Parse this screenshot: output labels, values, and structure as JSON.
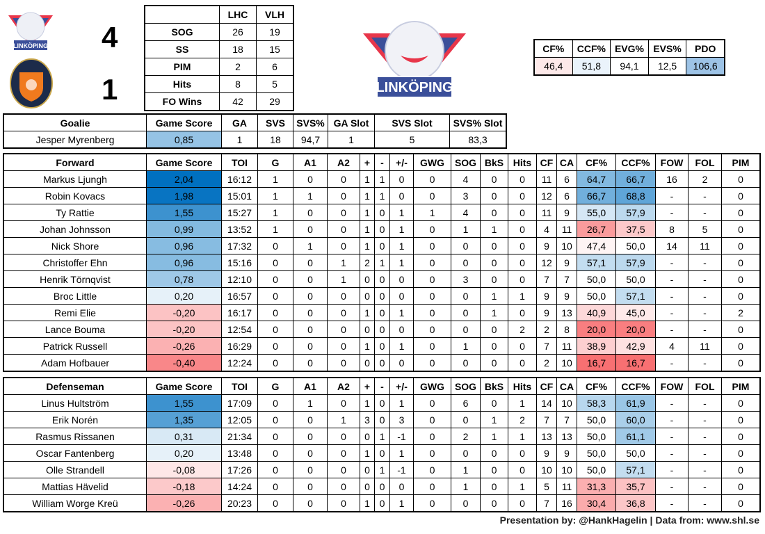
{
  "scoreboard": {
    "home_logo": "Linköping",
    "away_logo": "Växjö Lakers Hockey Stort Hjärta",
    "home_score": "4",
    "away_score": "1"
  },
  "team_stats": {
    "headers": [
      "",
      "LHC",
      "VLH"
    ],
    "rows": [
      [
        "SOG",
        "26",
        "19"
      ],
      [
        "SS",
        "18",
        "15"
      ],
      [
        "PIM",
        "2",
        "6"
      ],
      [
        "Hits",
        "8",
        "5"
      ],
      [
        "FO Wins",
        "42",
        "29"
      ]
    ]
  },
  "big_logo": "LINKÖPING",
  "advanced": {
    "headers": [
      "CF%",
      "CCF%",
      "EVG%",
      "EVS%",
      "PDO"
    ],
    "values": [
      "46,4",
      "51,8",
      "94,1",
      "12,5",
      "106,6"
    ],
    "colors": [
      "#fde9e9",
      "#eaf3fb",
      "#ffffff",
      "#ffffff",
      "#9dc3e6"
    ]
  },
  "color_scales": {
    "game_score": {
      "min": -0.5,
      "mid": 0,
      "max": 2.04,
      "min_color": "#F8696B",
      "mid_color": "#FFFFFF",
      "max_color": "#0070C0"
    },
    "corsi": {
      "min": 15,
      "mid": 50,
      "max": 80,
      "min_color": "#F8696B",
      "mid_color": "#FFFFFF",
      "max_color": "#0070C0"
    }
  },
  "goalie": {
    "headers": [
      "Goalie",
      "Game Score",
      "GA",
      "SVS",
      "SVS%",
      "GA Slot",
      "SVS Slot",
      "SVS% Slot"
    ],
    "rows": [
      [
        "Jesper Myrenberg",
        "0,85",
        "1",
        "18",
        "94,7",
        "1",
        "5",
        "83,3"
      ]
    ]
  },
  "forwards": {
    "headers": [
      "Forward",
      "Game Score",
      "TOI",
      "G",
      "A1",
      "A2",
      "+",
      "-",
      "+/-",
      "GWG",
      "SOG",
      "BkS",
      "Hits",
      "CF",
      "CA",
      "CF%",
      "CCF%",
      "FOW",
      "FOL",
      "PIM"
    ],
    "rows": [
      [
        "Markus Ljungh",
        "2,04",
        "16:12",
        "1",
        "0",
        "0",
        "1",
        "1",
        "0",
        "0",
        "4",
        "0",
        "0",
        "11",
        "6",
        "64,7",
        "66,7",
        "16",
        "2",
        "0"
      ],
      [
        "Robin Kovacs",
        "1,98",
        "15:01",
        "1",
        "1",
        "0",
        "1",
        "1",
        "0",
        "0",
        "3",
        "0",
        "0",
        "12",
        "6",
        "66,7",
        "68,8",
        "-",
        "-",
        "0"
      ],
      [
        "Ty Rattie",
        "1,55",
        "15:27",
        "1",
        "0",
        "0",
        "1",
        "0",
        "1",
        "1",
        "4",
        "0",
        "0",
        "11",
        "9",
        "55,0",
        "57,9",
        "-",
        "-",
        "0"
      ],
      [
        "Johan Johnsson",
        "0,99",
        "13:52",
        "1",
        "0",
        "0",
        "1",
        "0",
        "1",
        "0",
        "1",
        "1",
        "0",
        "4",
        "11",
        "26,7",
        "37,5",
        "8",
        "5",
        "0"
      ],
      [
        "Nick Shore",
        "0,96",
        "17:32",
        "0",
        "1",
        "0",
        "1",
        "0",
        "1",
        "0",
        "0",
        "0",
        "0",
        "9",
        "10",
        "47,4",
        "50,0",
        "14",
        "11",
        "0"
      ],
      [
        "Christoffer Ehn",
        "0,96",
        "15:16",
        "0",
        "0",
        "1",
        "2",
        "1",
        "1",
        "0",
        "0",
        "0",
        "0",
        "12",
        "9",
        "57,1",
        "57,9",
        "-",
        "-",
        "0"
      ],
      [
        "Henrik Törnqvist",
        "0,78",
        "12:10",
        "0",
        "0",
        "1",
        "0",
        "0",
        "0",
        "0",
        "3",
        "0",
        "0",
        "7",
        "7",
        "50,0",
        "50,0",
        "-",
        "-",
        "0"
      ],
      [
        "Broc Little",
        "0,20",
        "16:57",
        "0",
        "0",
        "0",
        "0",
        "0",
        "0",
        "0",
        "0",
        "1",
        "1",
        "9",
        "9",
        "50,0",
        "57,1",
        "-",
        "-",
        "0"
      ],
      [
        "Remi Elie",
        "-0,20",
        "16:17",
        "0",
        "0",
        "0",
        "1",
        "0",
        "1",
        "0",
        "0",
        "1",
        "0",
        "9",
        "13",
        "40,9",
        "45,0",
        "-",
        "-",
        "2"
      ],
      [
        "Lance Bouma",
        "-0,20",
        "12:54",
        "0",
        "0",
        "0",
        "0",
        "0",
        "0",
        "0",
        "0",
        "0",
        "2",
        "2",
        "8",
        "20,0",
        "20,0",
        "-",
        "-",
        "0"
      ],
      [
        "Patrick Russell",
        "-0,26",
        "16:29",
        "0",
        "0",
        "0",
        "1",
        "0",
        "1",
        "0",
        "1",
        "0",
        "0",
        "7",
        "11",
        "38,9",
        "42,9",
        "4",
        "11",
        "0"
      ],
      [
        "Adam Hofbauer",
        "-0,40",
        "12:24",
        "0",
        "0",
        "0",
        "0",
        "0",
        "0",
        "0",
        "0",
        "0",
        "0",
        "2",
        "10",
        "16,7",
        "16,7",
        "-",
        "-",
        "0"
      ]
    ]
  },
  "defense": {
    "headers": [
      "Defenseman",
      "Game Score",
      "TOI",
      "G",
      "A1",
      "A2",
      "+",
      "-",
      "+/-",
      "GWG",
      "SOG",
      "BkS",
      "Hits",
      "CF",
      "CA",
      "CF%",
      "CCF%",
      "FOW",
      "FOL",
      "PIM"
    ],
    "rows": [
      [
        "Linus Hultström",
        "1,55",
        "17:09",
        "0",
        "1",
        "0",
        "1",
        "0",
        "1",
        "0",
        "6",
        "0",
        "1",
        "14",
        "10",
        "58,3",
        "61,9",
        "-",
        "-",
        "0"
      ],
      [
        "Erik Norén",
        "1,35",
        "12:05",
        "0",
        "0",
        "1",
        "3",
        "0",
        "3",
        "0",
        "0",
        "1",
        "2",
        "7",
        "7",
        "50,0",
        "60,0",
        "-",
        "-",
        "0"
      ],
      [
        "Rasmus Rissanen",
        "0,31",
        "21:34",
        "0",
        "0",
        "0",
        "0",
        "1",
        "-1",
        "0",
        "2",
        "1",
        "1",
        "13",
        "13",
        "50,0",
        "61,1",
        "-",
        "-",
        "0"
      ],
      [
        "Oscar Fantenberg",
        "0,20",
        "13:48",
        "0",
        "0",
        "0",
        "1",
        "0",
        "1",
        "0",
        "0",
        "0",
        "0",
        "9",
        "9",
        "50,0",
        "50,0",
        "-",
        "-",
        "0"
      ],
      [
        "Olle Strandell",
        "-0,08",
        "17:26",
        "0",
        "0",
        "0",
        "0",
        "1",
        "-1",
        "0",
        "1",
        "0",
        "0",
        "10",
        "10",
        "50,0",
        "57,1",
        "-",
        "-",
        "0"
      ],
      [
        "Mattias Hävelid",
        "-0,18",
        "14:24",
        "0",
        "0",
        "0",
        "0",
        "0",
        "0",
        "0",
        "1",
        "0",
        "1",
        "5",
        "11",
        "31,3",
        "35,7",
        "-",
        "-",
        "0"
      ],
      [
        "William Worge Kreü",
        "-0,26",
        "20:23",
        "0",
        "0",
        "0",
        "1",
        "0",
        "1",
        "0",
        "0",
        "0",
        "0",
        "7",
        "16",
        "30,4",
        "36,8",
        "-",
        "-",
        "0"
      ]
    ]
  },
  "footer": "Presentation by: @HankHagelin | Data from: www.shl.se"
}
